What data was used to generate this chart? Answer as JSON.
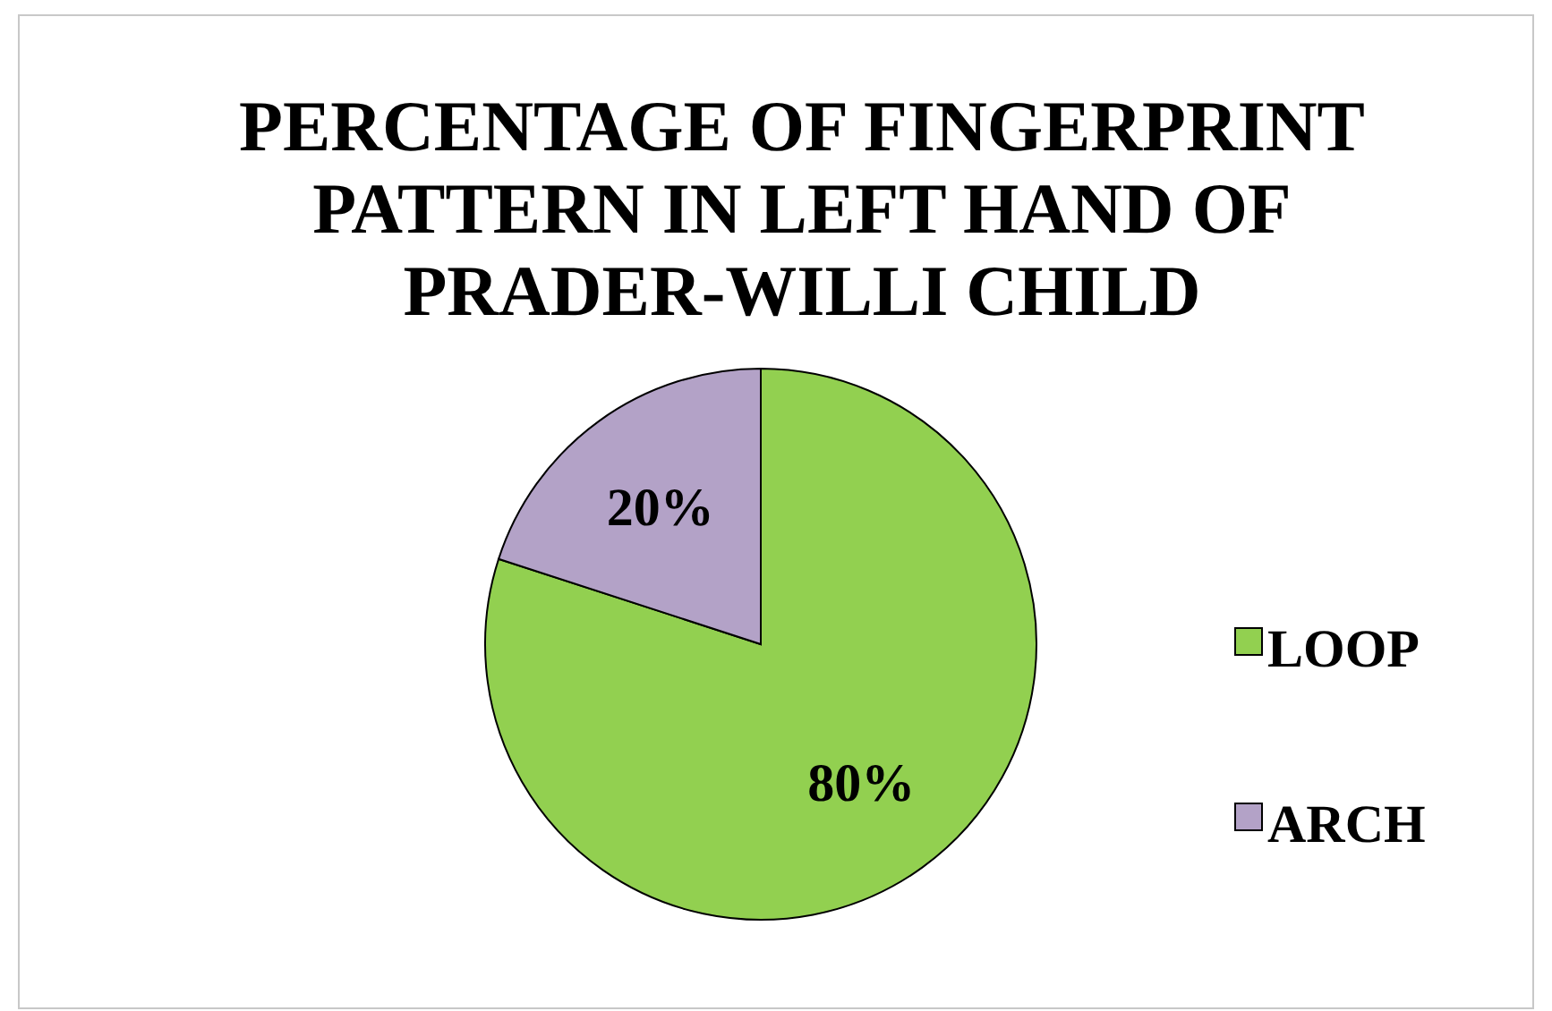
{
  "chart_data": {
    "type": "pie",
    "title": "PERCENTAGE OF FINGERPRINT PATTERN IN LEFT HAND OF PRADER-WILLI CHILD",
    "categories": [
      "LOOP",
      "ARCH"
    ],
    "values": [
      80,
      20
    ],
    "colors": [
      "#92d050",
      "#b3a2c7"
    ],
    "value_labels": [
      "80%",
      "20%"
    ],
    "legend": "right"
  }
}
